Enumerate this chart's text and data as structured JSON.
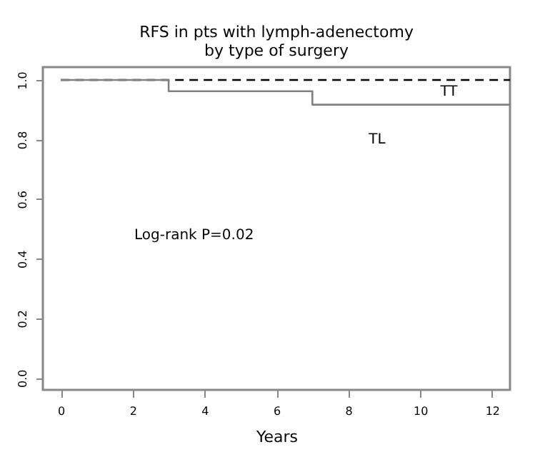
{
  "chart_data": {
    "type": "step",
    "title": "RFS in pts with lymph-adenectomy\nby type of surgery",
    "xlabel": "Years",
    "series": [
      {
        "name": "TT",
        "color": "#000000",
        "line_style": "dashed",
        "x": [
          0,
          12.5
        ],
        "values": [
          1,
          1
        ]
      },
      {
        "name": "TL",
        "color": "#808080",
        "line_style": "solid",
        "x": [
          0,
          3,
          7,
          12.5
        ],
        "values": [
          1,
          0.962,
          0.917,
          0.917
        ]
      }
    ],
    "xlim": [
      -0.5,
      12.5
    ],
    "xticks": [
      0,
      2,
      4,
      6,
      8,
      10,
      12
    ],
    "ylim": [
      -0.04,
      1.043
    ],
    "yticks": [
      {
        "value": 0,
        "label": "0.0"
      },
      {
        "value": 0.2,
        "label": "0.2"
      },
      {
        "value": 0.4,
        "label": "0.4"
      },
      {
        "value": 0.6,
        "label": "0.6"
      },
      {
        "value": 0.8,
        "label": "0.8"
      },
      {
        "value": 1,
        "label": "1.0"
      }
    ],
    "annotations": [
      "Log-rank P=0.02"
    ],
    "grid": false,
    "legend": false,
    "marker": "none"
  }
}
